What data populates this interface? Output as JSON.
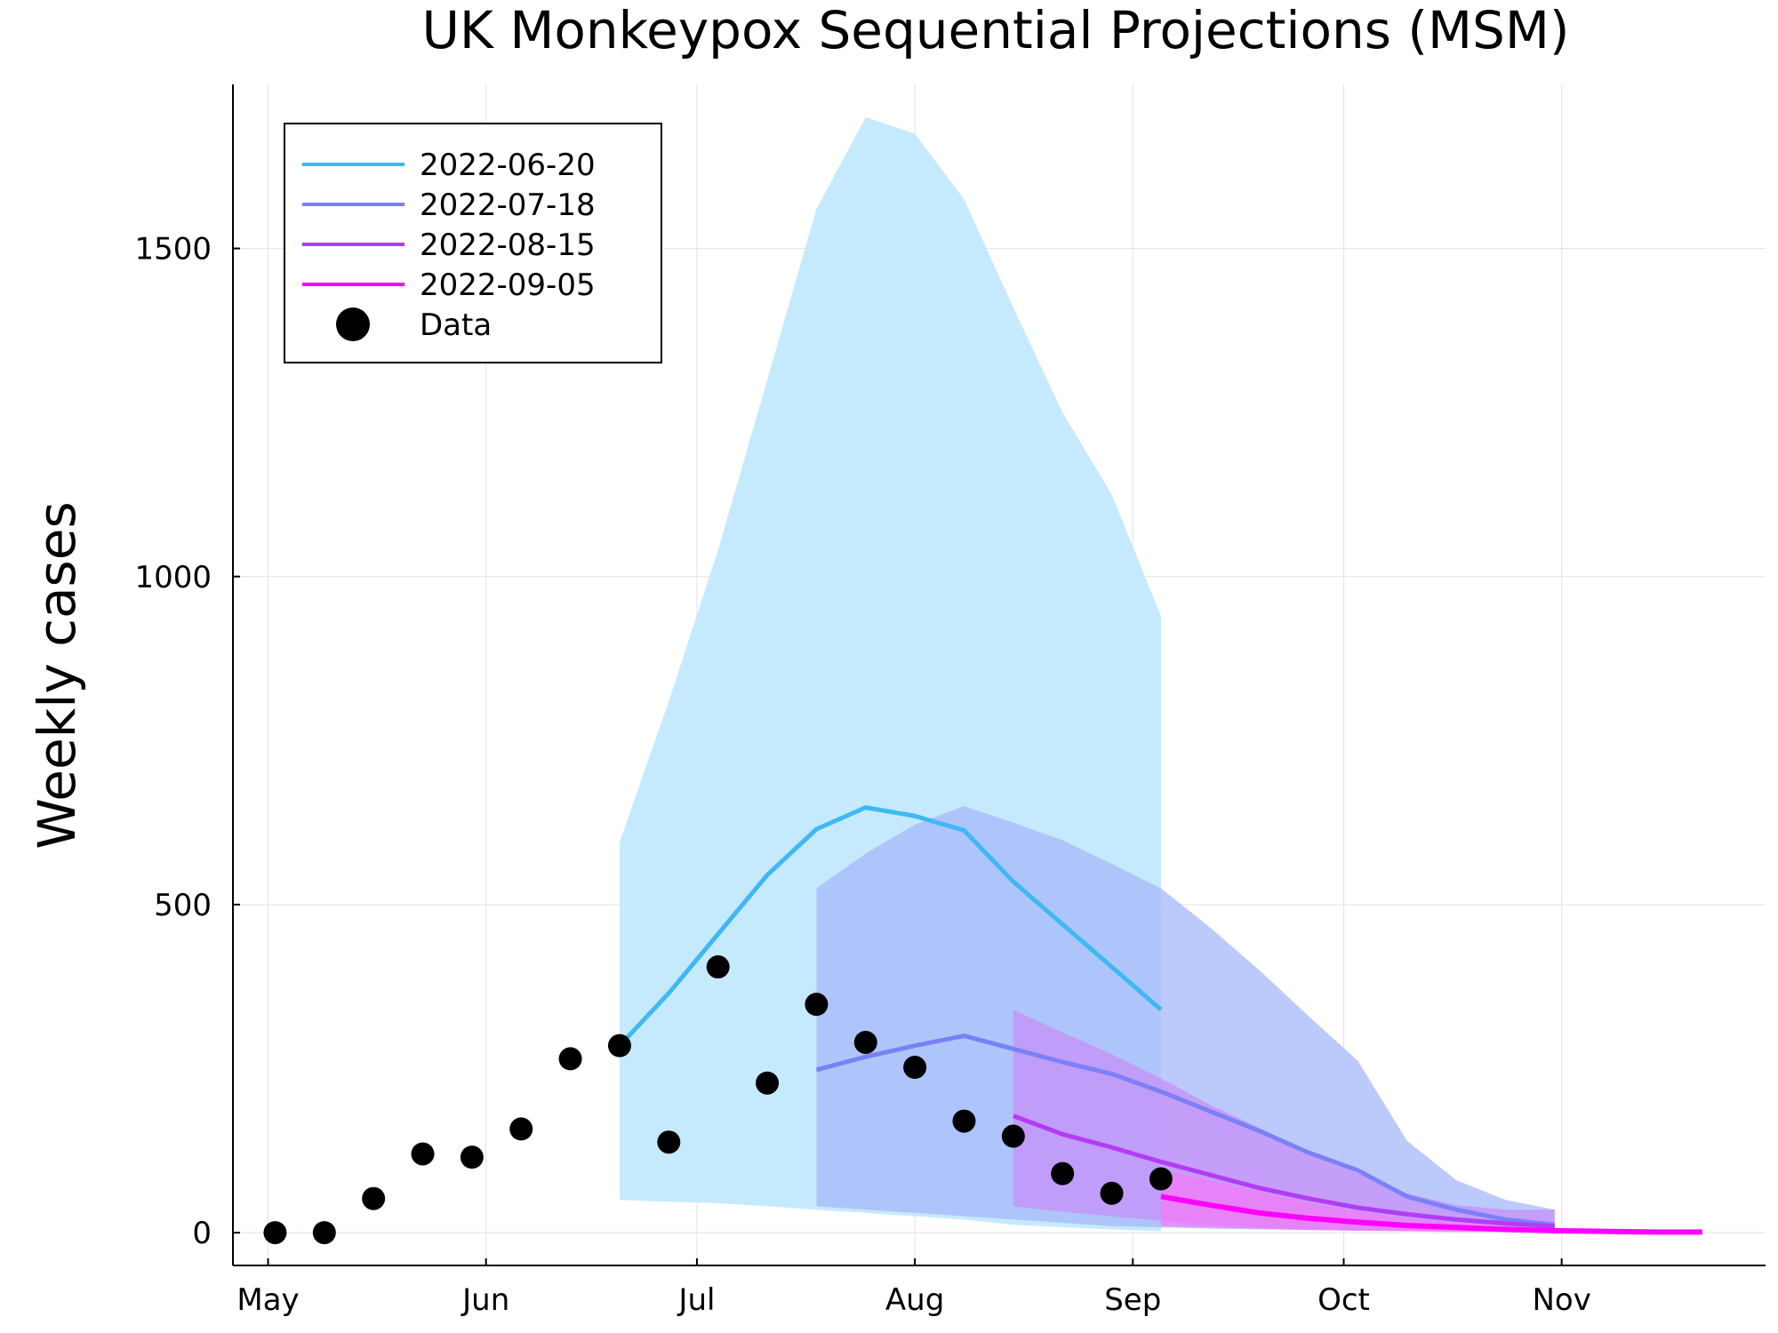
{
  "chart_data": {
    "type": "line",
    "title": "UK Monkeypox Sequential Projections (MSM)",
    "xlabel": "",
    "ylabel": "Weekly cases",
    "x_type": "date",
    "xlim": [
      "2022-04-26",
      "2022-11-30"
    ],
    "ylim": [
      -50,
      1750
    ],
    "x_ticks": [
      {
        "date": "2022-05-01",
        "label": "May"
      },
      {
        "date": "2022-06-01",
        "label": "Jun"
      },
      {
        "date": "2022-07-01",
        "label": "Jul"
      },
      {
        "date": "2022-08-01",
        "label": "Aug"
      },
      {
        "date": "2022-09-01",
        "label": "Sep"
      },
      {
        "date": "2022-10-01",
        "label": "Oct"
      },
      {
        "date": "2022-11-01",
        "label": "Nov"
      }
    ],
    "y_ticks": [
      0,
      500,
      1000,
      1500
    ],
    "grid": true,
    "legend_position": "top-left",
    "series": [
      {
        "name": "2022-06-20",
        "color": "#3fb8f3",
        "band_color": "#c6eafd",
        "line_width": 5,
        "x": [
          "2022-06-20",
          "2022-06-27",
          "2022-07-04",
          "2022-07-11",
          "2022-07-18",
          "2022-07-25",
          "2022-08-01",
          "2022-08-08",
          "2022-08-15",
          "2022-08-22",
          "2022-08-29",
          "2022-09-05"
        ],
        "y": [
          285,
          365,
          455,
          545,
          615,
          648,
          635,
          613,
          535,
          470,
          405,
          340
        ],
        "lower": [
          50,
          47,
          45,
          40,
          35,
          30,
          25,
          20,
          12,
          8,
          5,
          2
        ],
        "upper": [
          595,
          810,
          1040,
          1300,
          1560,
          1700,
          1675,
          1575,
          1410,
          1250,
          1125,
          940
        ]
      },
      {
        "name": "2022-07-18",
        "color": "#7b80f6",
        "band_color": "#a6b8f9",
        "line_width": 5,
        "x": [
          "2022-07-18",
          "2022-07-25",
          "2022-08-01",
          "2022-08-08",
          "2022-08-15",
          "2022-08-22",
          "2022-08-29",
          "2022-09-05",
          "2022-09-12",
          "2022-09-19",
          "2022-09-26",
          "2022-10-03",
          "2022-10-10",
          "2022-10-17",
          "2022-10-24",
          "2022-10-31"
        ],
        "y": [
          248,
          268,
          285,
          300,
          280,
          260,
          242,
          215,
          185,
          155,
          122,
          95,
          55,
          35,
          20,
          12
        ],
        "lower": [
          40,
          35,
          30,
          25,
          20,
          15,
          10,
          8,
          6,
          5,
          4,
          3,
          3,
          2,
          2,
          1
        ],
        "upper": [
          525,
          578,
          622,
          650,
          625,
          598,
          562,
          525,
          465,
          400,
          330,
          262,
          140,
          80,
          50,
          35
        ]
      },
      {
        "name": "2022-08-15",
        "color": "#b43bf5",
        "band_color": "#c88cf8",
        "line_width": 5,
        "x": [
          "2022-08-15",
          "2022-08-22",
          "2022-08-29",
          "2022-09-05",
          "2022-09-12",
          "2022-09-19",
          "2022-09-26",
          "2022-10-03",
          "2022-10-10",
          "2022-10-17",
          "2022-10-24",
          "2022-10-31"
        ],
        "y": [
          178,
          150,
          130,
          108,
          88,
          68,
          52,
          38,
          28,
          20,
          14,
          10
        ],
        "lower": [
          40,
          32,
          25,
          18,
          12,
          8,
          5,
          4,
          3,
          2,
          2,
          1
        ],
        "upper": [
          340,
          305,
          272,
          235,
          195,
          160,
          122,
          90,
          60,
          42,
          35,
          35
        ]
      },
      {
        "name": "2022-09-05",
        "color": "#ff00ff",
        "band_color": "#f37af7",
        "line_width": 6,
        "x": [
          "2022-09-05",
          "2022-09-12",
          "2022-09-19",
          "2022-09-26",
          "2022-10-03",
          "2022-10-10",
          "2022-10-17",
          "2022-10-24",
          "2022-10-31",
          "2022-11-07",
          "2022-11-14",
          "2022-11-21"
        ],
        "y": [
          55,
          42,
          30,
          22,
          16,
          11,
          8,
          5,
          3,
          2,
          1,
          1
        ],
        "lower": [
          10,
          8,
          6,
          4,
          3,
          2,
          1,
          1,
          0,
          0,
          0,
          0
        ],
        "upper": [
          95,
          80,
          62,
          45,
          32,
          22,
          15,
          10,
          6,
          4,
          3,
          2
        ]
      }
    ],
    "data": {
      "name": "Data",
      "color": "#000000",
      "x": [
        "2022-05-02",
        "2022-05-09",
        "2022-05-16",
        "2022-05-23",
        "2022-05-30",
        "2022-06-06",
        "2022-06-13",
        "2022-06-20",
        "2022-06-27",
        "2022-07-04",
        "2022-07-11",
        "2022-07-18",
        "2022-07-25",
        "2022-08-01",
        "2022-08-08",
        "2022-08-15",
        "2022-08-22",
        "2022-08-29",
        "2022-09-05"
      ],
      "y": [
        0,
        0,
        52,
        120,
        115,
        158,
        265,
        285,
        138,
        405,
        228,
        348,
        290,
        252,
        170,
        147,
        90,
        60,
        82
      ]
    }
  }
}
